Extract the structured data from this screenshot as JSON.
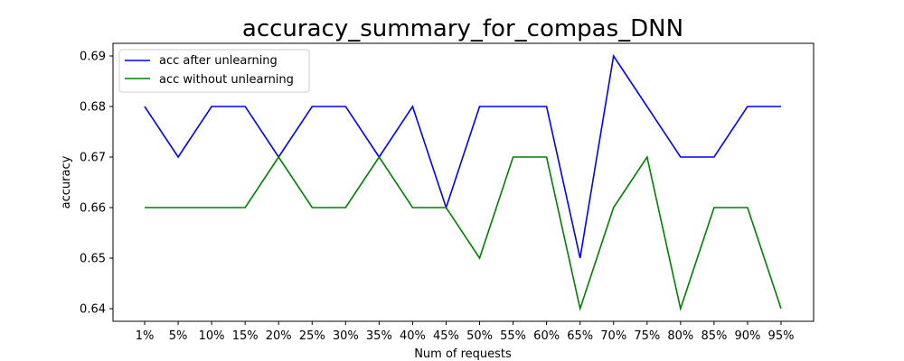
{
  "chart_data": {
    "type": "line",
    "title": "accuracy_summary_for_compas_DNN",
    "xlabel": "Num of requests",
    "ylabel": "accuracy",
    "categories": [
      "1%",
      "5%",
      "10%",
      "15%",
      "20%",
      "25%",
      "30%",
      "35%",
      "40%",
      "45%",
      "50%",
      "55%",
      "60%",
      "65%",
      "70%",
      "75%",
      "80%",
      "85%",
      "90%",
      "95%"
    ],
    "ylim": [
      0.6375,
      0.6925
    ],
    "yticks": [
      "0.64",
      "0.65",
      "0.66",
      "0.67",
      "0.68",
      "0.69"
    ],
    "ytick_values": [
      0.64,
      0.65,
      0.66,
      0.67,
      0.68,
      0.69
    ],
    "grid": false,
    "legend_position": "top-left",
    "series": [
      {
        "name": "acc after unlearning",
        "color": "#0000ff",
        "values": [
          0.68,
          0.67,
          0.68,
          0.68,
          0.67,
          0.68,
          0.68,
          0.67,
          0.68,
          0.66,
          0.68,
          0.68,
          0.68,
          0.65,
          0.69,
          0.68,
          0.67,
          0.67,
          0.68,
          0.68
        ]
      },
      {
        "name": "acc without unlearning",
        "color": "#008000",
        "values": [
          0.66,
          0.66,
          0.66,
          0.66,
          0.67,
          0.66,
          0.66,
          0.67,
          0.66,
          0.66,
          0.65,
          0.67,
          0.67,
          0.64,
          0.66,
          0.67,
          0.64,
          0.66,
          0.66,
          0.64
        ]
      }
    ]
  }
}
